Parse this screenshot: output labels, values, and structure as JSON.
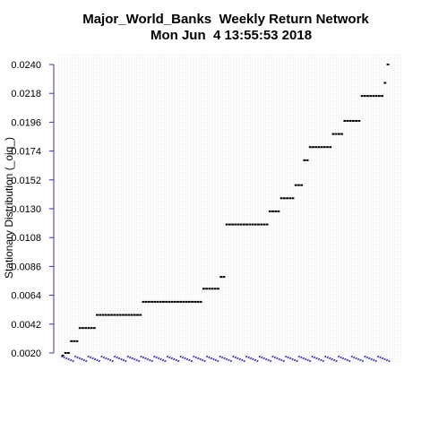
{
  "chart_data": {
    "type": "scatter",
    "title": "Major_World_Banks  Weekly Return Network",
    "subtitle": "Mon Jun  4 13:55:53 2018",
    "xlabel": "",
    "ylabel": "Stationary Distribution (_oiq_)",
    "y_ticks": [
      "0.0020",
      "0.0042",
      "0.0064",
      "0.0086",
      "0.0108",
      "0.0130",
      "0.0152",
      "0.0174",
      "0.0196",
      "0.0218",
      "0.0240"
    ],
    "ylim": [
      0.0016,
      0.0244
    ],
    "grid": true,
    "colors": {
      "axis": "#3333aa",
      "points": "#000000",
      "grid": "#cfcfcf",
      "node_labels": "#3333aa"
    },
    "series": [
      {
        "values": [
          0.0018,
          0.002,
          0.002,
          0.0029,
          0.0029,
          0.0029,
          0.0039,
          0.0039,
          0.0039,
          0.0039,
          0.0039,
          0.0039,
          0.0049,
          0.0049,
          0.0049,
          0.0049,
          0.0049,
          0.0049,
          0.0049,
          0.0049,
          0.0049,
          0.0049,
          0.0049,
          0.0049,
          0.0049,
          0.0049,
          0.0049,
          0.0049,
          0.0059,
          0.0059,
          0.0059,
          0.0059,
          0.0059,
          0.0059,
          0.0059,
          0.0059,
          0.0059,
          0.0059,
          0.0059,
          0.0059,
          0.0059,
          0.0059,
          0.0059,
          0.0059,
          0.0059,
          0.0059,
          0.0059,
          0.0059,
          0.0059,
          0.0069,
          0.0069,
          0.0069,
          0.0069,
          0.0069,
          0.0069,
          0.0078,
          0.0078,
          0.0118,
          0.0118,
          0.0118,
          0.0118,
          0.0118,
          0.0118,
          0.0118,
          0.0118,
          0.0118,
          0.0118,
          0.0118,
          0.0118,
          0.0118,
          0.0118,
          0.0118,
          0.0128,
          0.0128,
          0.0128,
          0.0128,
          0.0138,
          0.0138,
          0.0138,
          0.0138,
          0.0138,
          0.0148,
          0.0148,
          0.0148,
          0.0167,
          0.0167,
          0.0177,
          0.0177,
          0.0177,
          0.0177,
          0.0177,
          0.0177,
          0.0177,
          0.0177,
          0.0187,
          0.0187,
          0.0187,
          0.0187,
          0.0197,
          0.0197,
          0.0197,
          0.0197,
          0.0197,
          0.0197,
          0.0216,
          0.0216,
          0.0216,
          0.0216,
          0.0216,
          0.0216,
          0.0216,
          0.0216,
          0.0226,
          0.024
        ]
      }
    ]
  }
}
